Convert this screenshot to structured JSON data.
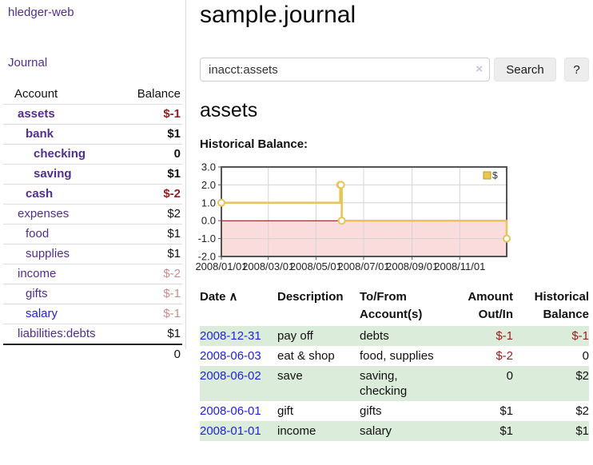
{
  "palette": {
    "link_purple": "#512e90",
    "link_blue": "#2222dd",
    "negative": "#9a1c1c",
    "negative_faded": "#c98c8c",
    "row_green": "#dcecdb",
    "gold": "#e8c455",
    "gold_fill": "#ecc74f",
    "pink_fill": "#fbdcdc",
    "zero_line": "#8b0000",
    "grid": "#d4d4d4",
    "chart_border": "#545454"
  },
  "app": {
    "title": "hledger-web"
  },
  "sidebar": {
    "nav_journal": "Journal",
    "accounts_table": {
      "headers": [
        "Account",
        "Balance"
      ],
      "rows": [
        {
          "account": "assets",
          "balance": "$-1",
          "depth": 1,
          "bold": true,
          "link_tone": "purple",
          "balance_tone": "negative"
        },
        {
          "account": "bank",
          "balance": "$1",
          "depth": 2,
          "bold": true,
          "link_tone": "purple",
          "balance_tone": "black"
        },
        {
          "account": "checking",
          "balance": "0",
          "depth": 3,
          "bold": true,
          "link_tone": "purple",
          "balance_tone": "black"
        },
        {
          "account": "saving",
          "balance": "$1",
          "depth": 3,
          "bold": true,
          "link_tone": "purple",
          "balance_tone": "black"
        },
        {
          "account": "cash",
          "balance": "$-2",
          "depth": 2,
          "bold": true,
          "link_tone": "purple",
          "balance_tone": "negative"
        },
        {
          "account": "expenses",
          "balance": "$2",
          "depth": 1,
          "bold": false,
          "link_tone": "purple",
          "balance_tone": "black"
        },
        {
          "account": "food",
          "balance": "$1",
          "depth": 2,
          "bold": false,
          "link_tone": "purple",
          "balance_tone": "black"
        },
        {
          "account": "supplies",
          "balance": "$1",
          "depth": 2,
          "bold": false,
          "link_tone": "purple",
          "balance_tone": "black"
        },
        {
          "account": "income",
          "balance": "$-2",
          "depth": 1,
          "bold": false,
          "link_tone": "purple",
          "balance_tone": "faded"
        },
        {
          "account": "gifts",
          "balance": "$-1",
          "depth": 2,
          "bold": false,
          "link_tone": "purple",
          "balance_tone": "faded"
        },
        {
          "account": "salary",
          "balance": "$-1",
          "depth": 2,
          "bold": false,
          "link_tone": "blue",
          "balance_tone": "faded"
        },
        {
          "account": "liabilities:debts",
          "balance": "$1",
          "depth": 1,
          "bold": false,
          "link_tone": "purple",
          "balance_tone": "black"
        }
      ],
      "total": "0"
    }
  },
  "main": {
    "title": "sample.journal",
    "search": {
      "value": "inacct:assets",
      "clear_icon": "×",
      "button_label": "Search",
      "help_label": "?"
    },
    "account_heading": "assets",
    "chart_label": "Historical Balance:",
    "register_table": {
      "sort_caret": "∧",
      "headers": [
        "Date",
        "Description",
        "To/From Account(s)",
        "Amount Out/In",
        "Historical Balance"
      ],
      "sorted_column": 0,
      "rows": [
        {
          "date": "2008-12-31",
          "description": "pay off",
          "accounts": "debts",
          "amount": "$-1",
          "amount_tone": "negative",
          "balance": "$-1",
          "balance_tone": "negative"
        },
        {
          "date": "2008-06-03",
          "description": "eat & shop",
          "accounts": "food, supplies",
          "amount": "$-2",
          "amount_tone": "negative",
          "balance": "0",
          "balance_tone": "black"
        },
        {
          "date": "2008-06-02",
          "description": "save",
          "accounts": "saving, checking",
          "amount": "0",
          "amount_tone": "black",
          "balance": "$2",
          "balance_tone": "black"
        },
        {
          "date": "2008-06-01",
          "description": "gift",
          "accounts": "gifts",
          "amount": "$1",
          "amount_tone": "black",
          "balance": "$2",
          "balance_tone": "black"
        },
        {
          "date": "2008-01-01",
          "description": "income",
          "accounts": "salary",
          "amount": "$1",
          "amount_tone": "black",
          "balance": "$1",
          "balance_tone": "black"
        }
      ]
    }
  },
  "chart_data": {
    "type": "line",
    "title": "Historical Balance",
    "step": true,
    "legend": {
      "label": "$",
      "position": "top-right"
    },
    "x_start": "2008-01-01",
    "x_end": "2008-12-31",
    "x_ticks": [
      "2008/01/01",
      "2008/03/01",
      "2008/05/01",
      "2008/07/01",
      "2008/09/01",
      "2008/11/01"
    ],
    "y_ticks": [
      3.0,
      2.0,
      1.0,
      0.0,
      -1.0,
      -2.0
    ],
    "ylim": [
      -2,
      3
    ],
    "grid": true,
    "series": [
      {
        "name": "$",
        "points": [
          {
            "date": "2008-01-01",
            "value": 1
          },
          {
            "date": "2008-06-01",
            "value": 2
          },
          {
            "date": "2008-06-02",
            "value": 2
          },
          {
            "date": "2008-06-03",
            "value": 0
          },
          {
            "date": "2008-12-31",
            "value": -1
          }
        ]
      }
    ]
  }
}
